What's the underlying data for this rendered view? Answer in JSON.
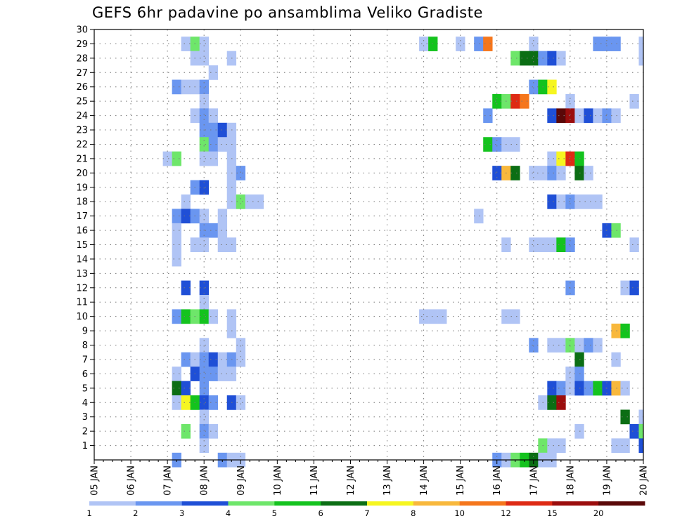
{
  "title": "GEFS 6hr padavine po ansamblima Veliko Gradiste",
  "chart_data": {
    "type": "heatmap",
    "title": "GEFS 6hr padavine po ansamblima Veliko Gradiste",
    "xlabel": "",
    "ylabel": "",
    "x_ticks": [
      "05 JAN",
      "06 JAN",
      "07 JAN",
      "08 JAN",
      "09 JAN",
      "10 JAN",
      "11 JAN",
      "12 JAN",
      "13 JAN",
      "14 JAN",
      "15 JAN",
      "16 JAN",
      "17 JAN",
      "18 JAN",
      "19 JAN",
      "20 JAN"
    ],
    "xlim": [
      0,
      60
    ],
    "y_ticks": [
      1,
      2,
      3,
      4,
      5,
      6,
      7,
      8,
      9,
      10,
      11,
      12,
      13,
      14,
      15,
      16,
      17,
      18,
      19,
      20,
      21,
      22,
      23,
      24,
      25,
      26,
      27,
      28,
      29,
      30
    ],
    "ylim": [
      0,
      30
    ],
    "grid": true,
    "colorbar": {
      "placement": "bottom",
      "labels": [
        "1",
        "2",
        "3",
        "4",
        "5",
        "6",
        "7",
        "8",
        "10",
        "12",
        "15",
        "20"
      ],
      "colors": [
        "#b0c4f5",
        "#6a96f0",
        "#1f4fd6",
        "#6ee66a",
        "#14c31e",
        "#0b6e14",
        "#f6f620",
        "#f8b83c",
        "#f5761c",
        "#de2a14",
        "#9b0d0d",
        "#5a0808"
      ]
    },
    "cells": [
      [
        10,
        29,
        1
      ],
      [
        11,
        29,
        4
      ],
      [
        12,
        29,
        1
      ],
      [
        36,
        29,
        1
      ],
      [
        37,
        29,
        5
      ],
      [
        40,
        29,
        1
      ],
      [
        42,
        29,
        2
      ],
      [
        43,
        29,
        9
      ],
      [
        48,
        29,
        1
      ],
      [
        55,
        29,
        2
      ],
      [
        56,
        29,
        2
      ],
      [
        57,
        29,
        2
      ],
      [
        60,
        29,
        1
      ],
      [
        11,
        28,
        1
      ],
      [
        12,
        28,
        1
      ],
      [
        15,
        28,
        1
      ],
      [
        46,
        28,
        4
      ],
      [
        47,
        28,
        6
      ],
      [
        48,
        28,
        6
      ],
      [
        49,
        28,
        2
      ],
      [
        50,
        28,
        3
      ],
      [
        51,
        28,
        1
      ],
      [
        60,
        28,
        1
      ],
      [
        13,
        27,
        1
      ],
      [
        9,
        26,
        2
      ],
      [
        10,
        26,
        1
      ],
      [
        11,
        26,
        1
      ],
      [
        12,
        26,
        2
      ],
      [
        48,
        26,
        2
      ],
      [
        49,
        26,
        5
      ],
      [
        50,
        26,
        7
      ],
      [
        12,
        25,
        1
      ],
      [
        44,
        25,
        5
      ],
      [
        45,
        25,
        4
      ],
      [
        46,
        25,
        10
      ],
      [
        47,
        25,
        9
      ],
      [
        52,
        25,
        1
      ],
      [
        59,
        25,
        1
      ],
      [
        11,
        24,
        1
      ],
      [
        12,
        24,
        2
      ],
      [
        13,
        24,
        1
      ],
      [
        43,
        24,
        2
      ],
      [
        50,
        24,
        3
      ],
      [
        51,
        24,
        12
      ],
      [
        52,
        24,
        11
      ],
      [
        53,
        24,
        1
      ],
      [
        54,
        24,
        3
      ],
      [
        55,
        24,
        1
      ],
      [
        56,
        24,
        2
      ],
      [
        57,
        24,
        1
      ],
      [
        12,
        23,
        2
      ],
      [
        13,
        23,
        2
      ],
      [
        14,
        23,
        3
      ],
      [
        15,
        23,
        1
      ],
      [
        12,
        22,
        4
      ],
      [
        13,
        22,
        2
      ],
      [
        14,
        22,
        1
      ],
      [
        15,
        22,
        1
      ],
      [
        43,
        22,
        5
      ],
      [
        44,
        22,
        2
      ],
      [
        45,
        22,
        1
      ],
      [
        46,
        22,
        1
      ],
      [
        8,
        21,
        1
      ],
      [
        9,
        21,
        4
      ],
      [
        12,
        21,
        1
      ],
      [
        13,
        21,
        1
      ],
      [
        15,
        21,
        1
      ],
      [
        50,
        21,
        1
      ],
      [
        51,
        21,
        7
      ],
      [
        52,
        21,
        10
      ],
      [
        53,
        21,
        5
      ],
      [
        15,
        20,
        1
      ],
      [
        16,
        20,
        2
      ],
      [
        44,
        20,
        3
      ],
      [
        45,
        20,
        8
      ],
      [
        46,
        20,
        6
      ],
      [
        48,
        20,
        1
      ],
      [
        49,
        20,
        1
      ],
      [
        50,
        20,
        2
      ],
      [
        51,
        20,
        1
      ],
      [
        53,
        20,
        6
      ],
      [
        54,
        20,
        1
      ],
      [
        11,
        19,
        2
      ],
      [
        12,
        19,
        3
      ],
      [
        15,
        19,
        1
      ],
      [
        10,
        18,
        1
      ],
      [
        15,
        18,
        1
      ],
      [
        16,
        18,
        4
      ],
      [
        17,
        18,
        1
      ],
      [
        18,
        18,
        1
      ],
      [
        50,
        18,
        3
      ],
      [
        51,
        18,
        1
      ],
      [
        52,
        18,
        2
      ],
      [
        53,
        18,
        1
      ],
      [
        54,
        18,
        1
      ],
      [
        55,
        18,
        1
      ],
      [
        9,
        17,
        2
      ],
      [
        10,
        17,
        3
      ],
      [
        11,
        17,
        2
      ],
      [
        12,
        17,
        1
      ],
      [
        14,
        17,
        1
      ],
      [
        42,
        17,
        1
      ],
      [
        9,
        16,
        1
      ],
      [
        12,
        16,
        2
      ],
      [
        13,
        16,
        2
      ],
      [
        14,
        16,
        1
      ],
      [
        56,
        16,
        3
      ],
      [
        57,
        16,
        4
      ],
      [
        9,
        15,
        1
      ],
      [
        11,
        15,
        1
      ],
      [
        12,
        15,
        1
      ],
      [
        14,
        15,
        1
      ],
      [
        15,
        15,
        1
      ],
      [
        45,
        15,
        1
      ],
      [
        48,
        15,
        1
      ],
      [
        49,
        15,
        1
      ],
      [
        50,
        15,
        1
      ],
      [
        51,
        15,
        5
      ],
      [
        52,
        15,
        2
      ],
      [
        59,
        15,
        1
      ],
      [
        9,
        14,
        1
      ],
      [
        10,
        12,
        3
      ],
      [
        12,
        12,
        3
      ],
      [
        52,
        12,
        2
      ],
      [
        58,
        12,
        1
      ],
      [
        59,
        12,
        3
      ],
      [
        12,
        11,
        1
      ],
      [
        9,
        10,
        2
      ],
      [
        10,
        10,
        5
      ],
      [
        11,
        10,
        4
      ],
      [
        12,
        10,
        5
      ],
      [
        13,
        10,
        1
      ],
      [
        15,
        10,
        1
      ],
      [
        36,
        10,
        1
      ],
      [
        37,
        10,
        1
      ],
      [
        38,
        10,
        1
      ],
      [
        45,
        10,
        1
      ],
      [
        46,
        10,
        1
      ],
      [
        15,
        9,
        1
      ],
      [
        57,
        9,
        8
      ],
      [
        58,
        9,
        5
      ],
      [
        12,
        8,
        1
      ],
      [
        16,
        8,
        1
      ],
      [
        48,
        8,
        2
      ],
      [
        50,
        8,
        1
      ],
      [
        51,
        8,
        1
      ],
      [
        52,
        8,
        4
      ],
      [
        53,
        8,
        1
      ],
      [
        54,
        8,
        2
      ],
      [
        55,
        8,
        1
      ],
      [
        10,
        7,
        2
      ],
      [
        11,
        7,
        1
      ],
      [
        12,
        7,
        2
      ],
      [
        13,
        7,
        3
      ],
      [
        14,
        7,
        1
      ],
      [
        15,
        7,
        2
      ],
      [
        16,
        7,
        1
      ],
      [
        53,
        7,
        6
      ],
      [
        57,
        7,
        1
      ],
      [
        9,
        6,
        1
      ],
      [
        11,
        6,
        3
      ],
      [
        12,
        6,
        2
      ],
      [
        13,
        6,
        2
      ],
      [
        14,
        6,
        1
      ],
      [
        15,
        6,
        1
      ],
      [
        52,
        6,
        1
      ],
      [
        53,
        6,
        2
      ],
      [
        9,
        5,
        6
      ],
      [
        10,
        5,
        3
      ],
      [
        12,
        5,
        2
      ],
      [
        50,
        5,
        3
      ],
      [
        51,
        5,
        2
      ],
      [
        52,
        5,
        1
      ],
      [
        53,
        5,
        3
      ],
      [
        54,
        5,
        2
      ],
      [
        55,
        5,
        5
      ],
      [
        56,
        5,
        3
      ],
      [
        57,
        5,
        8
      ],
      [
        58,
        5,
        1
      ],
      [
        9,
        4,
        1
      ],
      [
        10,
        4,
        7
      ],
      [
        11,
        4,
        5
      ],
      [
        12,
        4,
        3
      ],
      [
        13,
        4,
        2
      ],
      [
        15,
        4,
        3
      ],
      [
        16,
        4,
        1
      ],
      [
        49,
        4,
        1
      ],
      [
        50,
        4,
        6
      ],
      [
        51,
        4,
        11
      ],
      [
        12,
        3,
        1
      ],
      [
        58,
        3,
        6
      ],
      [
        60,
        3,
        1
      ],
      [
        10,
        2,
        4
      ],
      [
        12,
        2,
        2
      ],
      [
        13,
        2,
        1
      ],
      [
        53,
        2,
        1
      ],
      [
        59,
        2,
        3
      ],
      [
        60,
        2,
        4
      ],
      [
        12,
        1,
        1
      ],
      [
        49,
        1,
        4
      ],
      [
        50,
        1,
        1
      ],
      [
        51,
        1,
        1
      ],
      [
        57,
        1,
        1
      ],
      [
        58,
        1,
        1
      ],
      [
        60,
        1,
        3
      ],
      [
        9,
        0,
        2
      ],
      [
        14,
        0,
        2
      ],
      [
        15,
        0,
        1
      ],
      [
        16,
        0,
        1
      ],
      [
        44,
        0,
        2
      ],
      [
        45,
        0,
        1
      ],
      [
        46,
        0,
        4
      ],
      [
        47,
        0,
        5
      ],
      [
        48,
        0,
        6
      ],
      [
        49,
        0,
        1
      ],
      [
        50,
        0,
        1
      ]
    ]
  }
}
